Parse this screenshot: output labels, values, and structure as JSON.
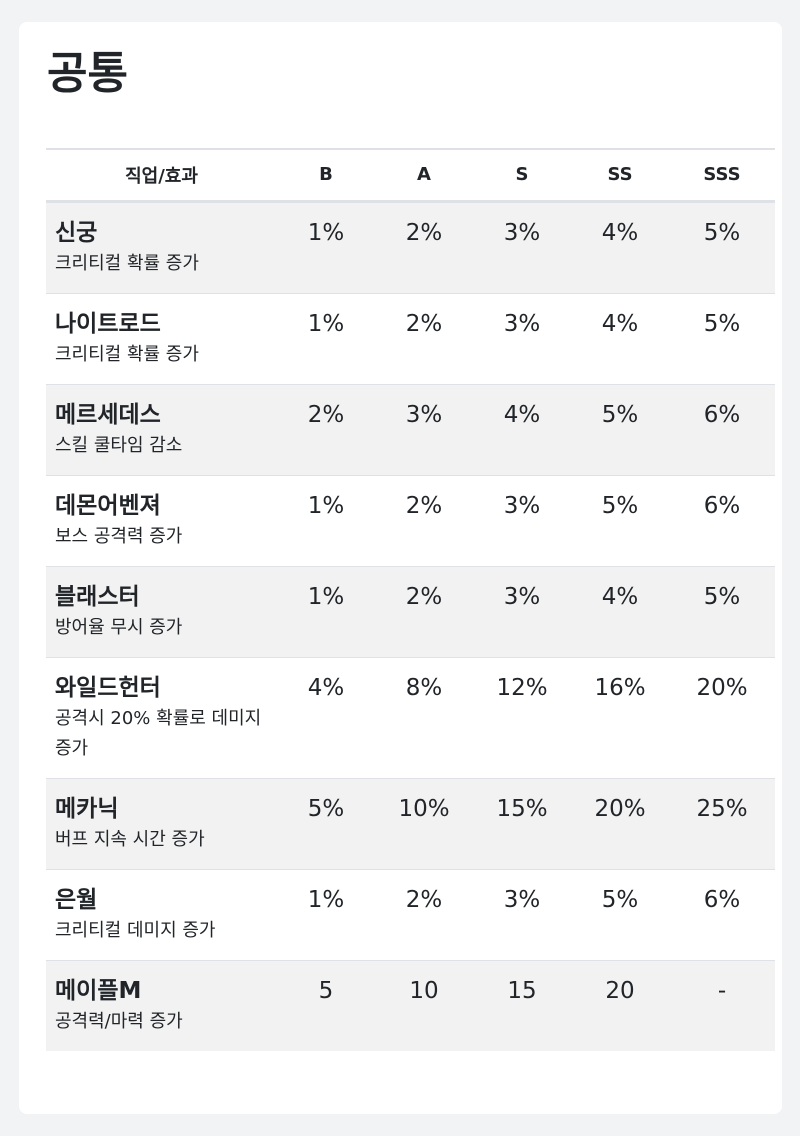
{
  "title": "공통",
  "table": {
    "headers": [
      "직업/효과",
      "B",
      "A",
      "S",
      "SS",
      "SSS"
    ],
    "rows": [
      {
        "job": "신궁",
        "effect": "크리티컬 확률 증가",
        "values": [
          "1%",
          "2%",
          "3%",
          "4%",
          "5%"
        ]
      },
      {
        "job": "나이트로드",
        "effect": "크리티컬 확률 증가",
        "values": [
          "1%",
          "2%",
          "3%",
          "4%",
          "5%"
        ]
      },
      {
        "job": "메르세데스",
        "effect": "스킬 쿨타임 감소",
        "values": [
          "2%",
          "3%",
          "4%",
          "5%",
          "6%"
        ]
      },
      {
        "job": "데몬어벤져",
        "effect": "보스 공격력 증가",
        "values": [
          "1%",
          "2%",
          "3%",
          "5%",
          "6%"
        ]
      },
      {
        "job": "블래스터",
        "effect": "방어율 무시 증가",
        "values": [
          "1%",
          "2%",
          "3%",
          "4%",
          "5%"
        ]
      },
      {
        "job": "와일드헌터",
        "effect": "공격시 20% 확률로 데미지 증가",
        "values": [
          "4%",
          "8%",
          "12%",
          "16%",
          "20%"
        ]
      },
      {
        "job": "메카닉",
        "effect": "버프 지속 시간 증가",
        "values": [
          "5%",
          "10%",
          "15%",
          "20%",
          "25%"
        ]
      },
      {
        "job": "은월",
        "effect": "크리티컬 데미지 증가",
        "values": [
          "1%",
          "2%",
          "3%",
          "5%",
          "6%"
        ]
      },
      {
        "job": "메이플M",
        "effect": "공격력/마력 증가",
        "values": [
          "5",
          "10",
          "15",
          "20",
          "-"
        ]
      }
    ]
  }
}
